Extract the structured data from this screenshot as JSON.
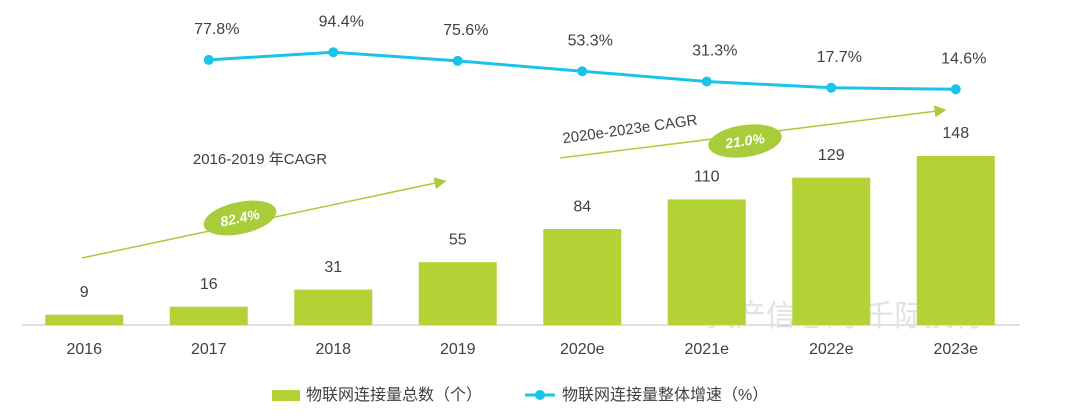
{
  "chart_data": {
    "type": "bar",
    "categories": [
      "2016",
      "2017",
      "2018",
      "2019",
      "2020e",
      "2021e",
      "2022e",
      "2023e"
    ],
    "series": [
      {
        "name": "物联网连接量总数（个）",
        "type": "bar",
        "color": "#b2d235",
        "values": [
          9,
          16,
          31,
          55,
          84,
          110,
          129,
          148
        ]
      },
      {
        "name": "物联网连接量整体增速（%）",
        "type": "line",
        "axis": "y2",
        "color": "#1bc3e8",
        "values": [
          null,
          77.8,
          94.4,
          75.6,
          53.3,
          31.3,
          17.7,
          14.6
        ],
        "value_labels": [
          null,
          "77.8%",
          "94.4%",
          "75.6%",
          "53.3%",
          "31.3%",
          "17.7%",
          "14.6%"
        ]
      }
    ],
    "annotations": [
      {
        "text": "2016-2019 年CAGR",
        "value_label": "82.4%"
      },
      {
        "text": "2020e-2023e CAGR",
        "value_label": "21.0%"
      }
    ],
    "watermark": "资产信息网 千际投行",
    "legend": "bottom"
  }
}
